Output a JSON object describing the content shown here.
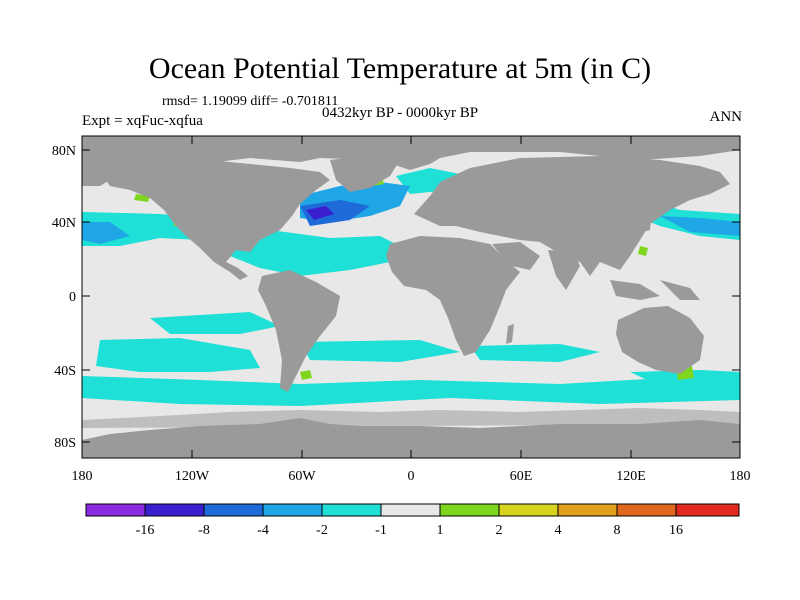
{
  "title": "Ocean Potential Temperature at 5m (in C)",
  "stats": "rmsd= 1.19099 diff= -0.701811",
  "period": "0432kyr BP - 0000kyr BP",
  "expt": "Expt = xqFuc-xqfua",
  "season": "ANN",
  "y_ticks": [
    "80N",
    "40N",
    "0",
    "40S",
    "80S"
  ],
  "x_ticks": [
    "180",
    "120W",
    "60W",
    "0",
    "60E",
    "120E",
    "180"
  ],
  "colorbar": {
    "colors": [
      "#8a2be2",
      "#3a1fcf",
      "#1e6ad8",
      "#1ea6e6",
      "#1ee0d6",
      "#e8e8e8",
      "#7ed61e",
      "#d6d21e",
      "#e0a01e",
      "#e0681e",
      "#e02a1e"
    ],
    "labels": [
      "-16",
      "-8",
      "-4",
      "-2",
      "-1",
      "1",
      "2",
      "4",
      "8",
      "16"
    ]
  },
  "map_colors": {
    "land": "#9a9a9a",
    "ocean": "#e8e8e8",
    "cool1": "#1ee0d6",
    "cool2": "#1ea6e6",
    "cool3": "#1e6ad8",
    "cool4": "#3a1fcf",
    "warm": "#7ed61e"
  }
}
